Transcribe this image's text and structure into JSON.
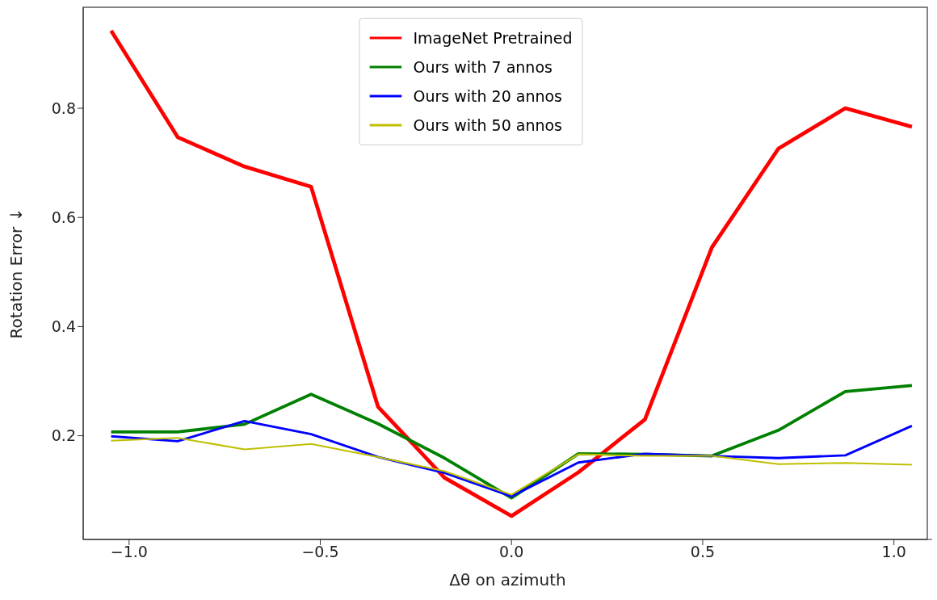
{
  "chart_data": {
    "type": "line",
    "xlabel": "Δθ on azimuth",
    "ylabel": "Rotation Error ↓",
    "x": [
      -1.047,
      -0.873,
      -0.698,
      -0.524,
      -0.349,
      -0.175,
      0,
      0.175,
      0.349,
      0.524,
      0.698,
      0.873,
      1.047
    ],
    "series": [
      {
        "name": "ImageNet Pretrained",
        "color": "#ff0000",
        "values": [
          0.942,
          0.747,
          0.693,
          0.656,
          0.253,
          0.123,
          0.053,
          0.133,
          0.23,
          0.545,
          0.726,
          0.8,
          0.766
        ]
      },
      {
        "name": "Ours with 7 annos",
        "color": "#008000",
        "values": [
          0.207,
          0.207,
          0.221,
          0.276,
          0.222,
          0.159,
          0.086,
          0.167,
          0.166,
          0.163,
          0.21,
          0.281,
          0.292
        ]
      },
      {
        "name": "Ours with 20 annos",
        "color": "#0000ff",
        "values": [
          0.199,
          0.19,
          0.227,
          0.203,
          0.161,
          0.132,
          0.089,
          0.151,
          0.167,
          0.163,
          0.159,
          0.164,
          0.218
        ]
      },
      {
        "name": "Ours with 50 annos",
        "color": "#bfbf00",
        "values": [
          0.191,
          0.196,
          0.175,
          0.185,
          0.161,
          0.135,
          0.092,
          0.166,
          0.163,
          0.163,
          0.148,
          0.15,
          0.147
        ]
      }
    ],
    "xlim": [
      -1.12,
      1.1
    ],
    "ylim": [
      0.01,
      0.985
    ],
    "xticks": [
      {
        "value": -1.0,
        "label": "−1.0"
      },
      {
        "value": -0.5,
        "label": "−0.5"
      },
      {
        "value": 0,
        "label": "0.0"
      },
      {
        "value": 0.5,
        "label": "0.5"
      },
      {
        "value": 1.0,
        "label": "1.0"
      }
    ],
    "yticks": [
      0.2,
      0.4,
      0.6,
      0.8
    ],
    "legend": "top",
    "grid": false,
    "marker": "none",
    "line_style": "solid"
  }
}
